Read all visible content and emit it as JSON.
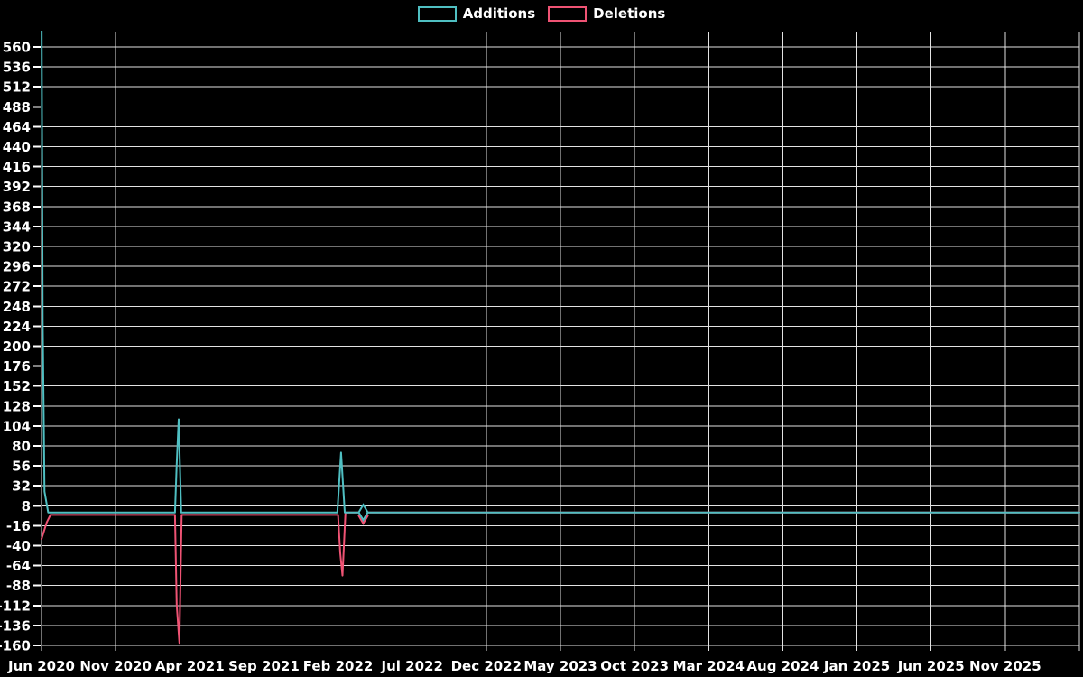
{
  "chart_data": {
    "type": "line",
    "title": "",
    "legend": {
      "position": "top-center",
      "entries": [
        "Additions",
        "Deletions"
      ]
    },
    "colors": {
      "additions": "#4fbfc2",
      "deletions": "#ef5374",
      "grid": "#e2e2e2",
      "text": "#ffffff",
      "background": "#000000"
    },
    "x_axis": {
      "unit": "months_after_Jun_2020",
      "tick_labels": [
        "Jun 2020",
        "Nov 2020",
        "Apr 2021",
        "Sep 2021",
        "Feb 2022",
        "Jul 2022",
        "Dec 2022",
        "May 2023",
        "Oct 2023",
        "Mar 2024",
        "Aug 2024",
        "Jan 2025",
        "Jun 2025",
        "Nov 2025"
      ],
      "tick_positions_months": [
        0,
        5,
        10,
        15,
        20,
        25,
        30,
        35,
        40,
        45,
        50,
        55,
        60,
        65
      ],
      "tick_step_months": 5,
      "range_months": [
        0,
        70
      ]
    },
    "y_axis": {
      "min": -160,
      "max": 560,
      "tick_step": 24,
      "note": "first Additions spike exceeds axis max and is clipped at plot top (~573)"
    },
    "series": [
      {
        "name": "Additions",
        "color": "#4fbfc2",
        "points": [
          [
            0,
            620
          ],
          [
            0.08,
            230
          ],
          [
            0.2,
            25
          ],
          [
            0.45,
            0
          ],
          [
            9.0,
            0
          ],
          [
            9.12,
            58
          ],
          [
            9.25,
            112
          ],
          [
            9.42,
            0
          ],
          [
            19.95,
            0
          ],
          [
            20.2,
            72
          ],
          [
            20.45,
            0
          ],
          [
            70,
            0
          ]
        ]
      },
      {
        "name": "Deletions",
        "color": "#ef5374",
        "points": [
          [
            0,
            -32
          ],
          [
            0.35,
            -12
          ],
          [
            0.6,
            -3
          ],
          [
            9.0,
            -3
          ],
          [
            9.12,
            -111
          ],
          [
            9.3,
            -157
          ],
          [
            9.45,
            -3
          ],
          [
            20.0,
            -3
          ],
          [
            20.15,
            -49
          ],
          [
            20.3,
            -76
          ],
          [
            20.5,
            0
          ],
          [
            70,
            0
          ]
        ]
      }
    ],
    "marker": {
      "shape": "diamond",
      "month": 21.7,
      "values": {
        "additions": 0,
        "deletions": -4
      }
    },
    "grid": true,
    "key_events": [
      {
        "label": "Jun 2020",
        "additions": "clipped spike above 560",
        "deletions": -32
      },
      {
        "label": "Mar 2021",
        "additions": 112,
        "deletions": -157
      },
      {
        "label": "Feb 2022",
        "additions": 72,
        "deletions": -76
      }
    ]
  }
}
